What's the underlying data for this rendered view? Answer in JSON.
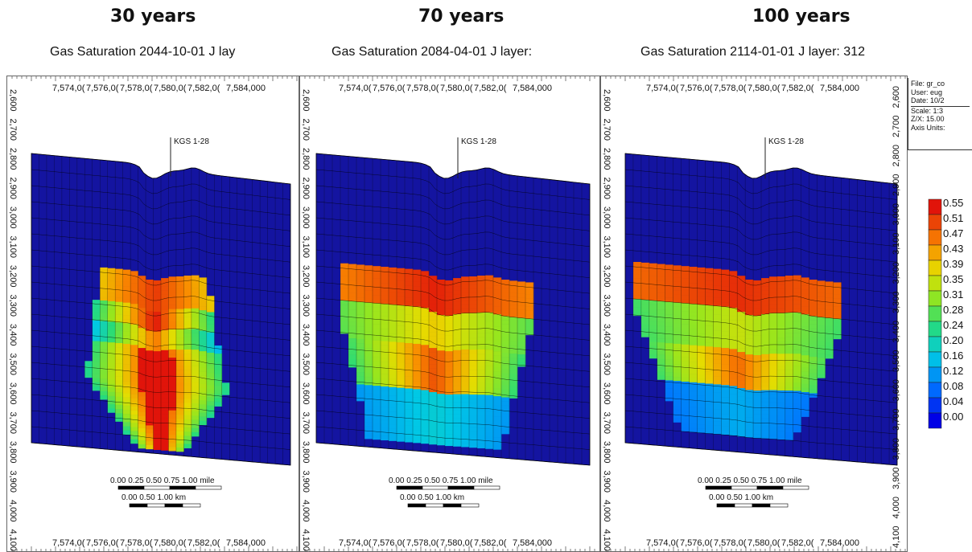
{
  "panels": [
    {
      "heading": "30 years",
      "subtitle": "Gas Saturation 2044-10-01     J lay",
      "well": "KGS 1-28"
    },
    {
      "heading": "70 years",
      "subtitle": "Gas Saturation 2084-04-01     J layer:",
      "well": "KGS 1-28"
    },
    {
      "heading": "100 years",
      "subtitle": "Gas Saturation 2114-01-01     J layer: 312",
      "well": "KGS 1-28"
    }
  ],
  "x_ticks": [
    "7,574,0(",
    "7,576,0(",
    "7,578,0(",
    "7,580,0(",
    "7,582,0(",
    "7,584,000"
  ],
  "y_ticks": [
    "2,600",
    "2,700",
    "2,800",
    "2,900",
    "3,000",
    "3,100",
    "3,200",
    "3,300",
    "3,400",
    "3,500",
    "3,600",
    "3,700",
    "3,800",
    "3,900",
    "4,000",
    "4,100"
  ],
  "scale_bar": {
    "mile_labels": "0.00  0.25  0.50  0.75  1.00 mile",
    "km_labels": "0.00      0.50      1.00 km"
  },
  "info": [
    "File: gr_co",
    "User:  eug",
    "Date: 10/2",
    "Scale: 1:3",
    "Z/X: 15.00",
    "Axis Units:"
  ],
  "legend": [
    "0.55",
    "0.51",
    "0.47",
    "0.43",
    "0.39",
    "0.35",
    "0.31",
    "0.28",
    "0.24",
    "0.20",
    "0.16",
    "0.12",
    "0.08",
    "0.04",
    "0.00"
  ],
  "colors": {
    "background_cell": "#1414a0",
    "max": "#e0140a",
    "min": "#0000e6"
  }
}
